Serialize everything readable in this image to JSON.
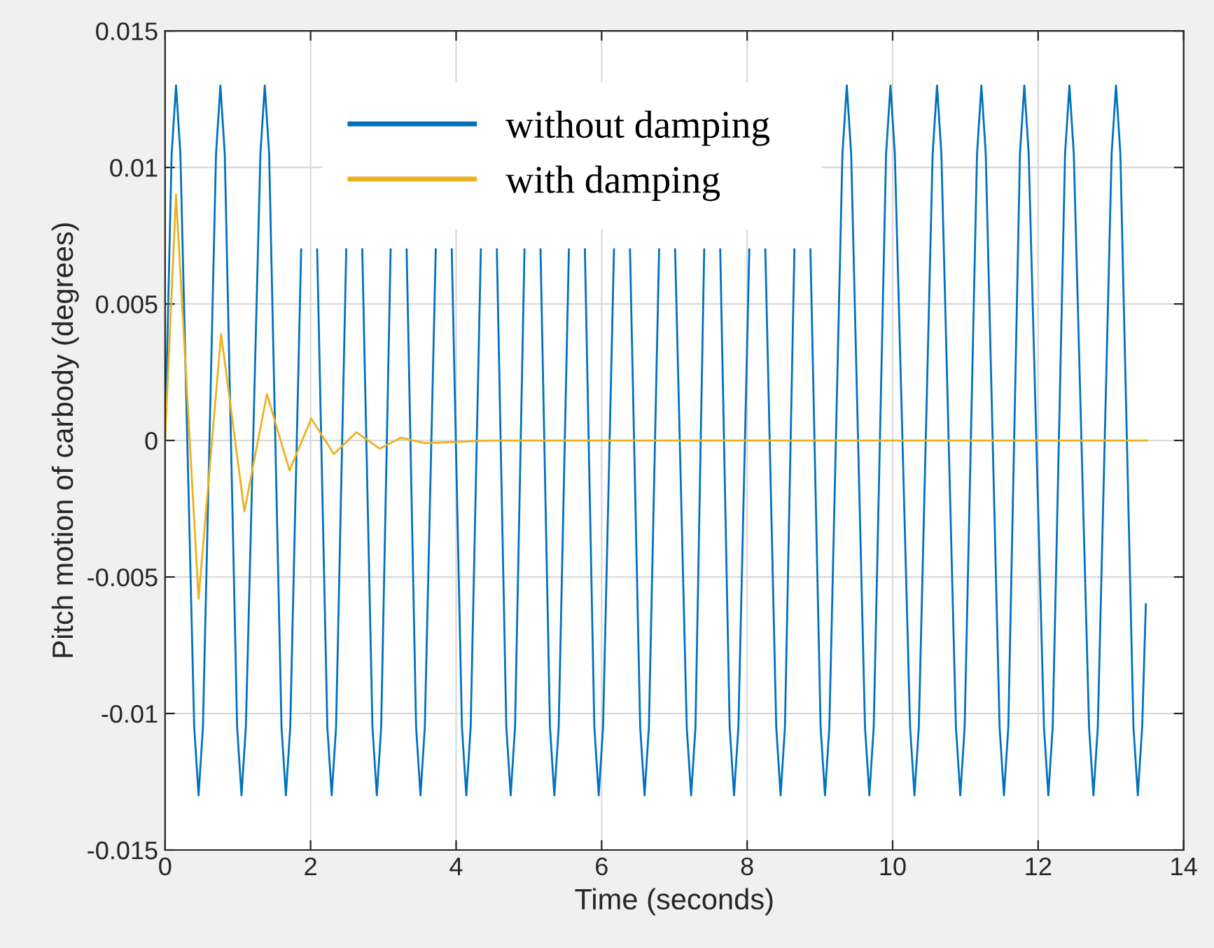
{
  "chart_data": {
    "type": "line",
    "xlabel": "Time (seconds)",
    "ylabel": "Pitch motion of carbody (degrees)",
    "xlim": [
      0,
      14
    ],
    "xticks": [
      0,
      2,
      4,
      6,
      8,
      10,
      12,
      14
    ],
    "ylim": [
      -0.015,
      0.015
    ],
    "yticks": [
      {
        "value": -0.015,
        "label": "-0.015"
      },
      {
        "value": -0.01,
        "label": "-0.01"
      },
      {
        "value": -0.005,
        "label": "-0.005"
      },
      {
        "value": 0,
        "label": "0"
      },
      {
        "value": 0.005,
        "label": "0.005"
      },
      {
        "value": 0.01,
        "label": "0.01"
      },
      {
        "value": 0.015,
        "label": "0.015"
      }
    ],
    "grid": true,
    "legend": "top",
    "line_style": "solid",
    "marker": "none",
    "series": [
      {
        "name": "without damping",
        "color": "#0072bd",
        "x": [
          0,
          0.09,
          0.15,
          0.21,
          0.4,
          0.46,
          0.52,
          0.7,
          0.76,
          0.82,
          0.99,
          1.05,
          1.11,
          1.31,
          1.37,
          1.43,
          1.6,
          1.66,
          1.72,
          1.87,
          1.98,
          2.09,
          2.23,
          2.29,
          2.35,
          2.49,
          2.6,
          2.71,
          2.85,
          2.91,
          2.97,
          3.1,
          3.21,
          3.32,
          3.45,
          3.51,
          3.57,
          3.72,
          3.83,
          3.94,
          4.08,
          4.14,
          4.2,
          4.34,
          4.45,
          4.56,
          4.69,
          4.75,
          4.81,
          4.94,
          5.05,
          5.16,
          5.29,
          5.35,
          5.41,
          5.55,
          5.66,
          5.77,
          5.9,
          5.96,
          6.02,
          6.17,
          6.28,
          6.39,
          6.53,
          6.59,
          6.65,
          6.79,
          6.9,
          7.01,
          7.17,
          7.23,
          7.29,
          7.41,
          7.52,
          7.63,
          7.76,
          7.82,
          7.88,
          8.03,
          8.14,
          8.25,
          8.4,
          8.46,
          8.52,
          8.65,
          8.76,
          8.87,
          9.01,
          9.07,
          9.13,
          9.31,
          9.37,
          9.43,
          9.62,
          9.68,
          9.74,
          9.91,
          9.97,
          10.03,
          10.24,
          10.3,
          10.36,
          10.55,
          10.61,
          10.67,
          10.87,
          10.93,
          10.99,
          11.16,
          11.22,
          11.28,
          11.47,
          11.53,
          11.59,
          11.75,
          11.81,
          11.87,
          12.08,
          12.14,
          12.2,
          12.37,
          12.43,
          12.49,
          12.7,
          12.76,
          12.82,
          13.01,
          13.07,
          13.13,
          13.31,
          13.37,
          13.43,
          13.48
        ],
        "values": [
          0,
          0.0105,
          0.013,
          0.0105,
          -0.0105,
          -0.013,
          -0.0105,
          0.0105,
          0.013,
          0.0105,
          -0.0105,
          -0.013,
          -0.0105,
          0.0105,
          0.013,
          0.0105,
          -0.0105,
          -0.013,
          -0.0105,
          0.007,
          null,
          0.007,
          -0.0105,
          -0.013,
          -0.0105,
          0.007,
          null,
          0.007,
          -0.0105,
          -0.013,
          -0.0105,
          0.007,
          null,
          0.007,
          -0.0105,
          -0.013,
          -0.0105,
          0.007,
          null,
          0.007,
          -0.0105,
          -0.013,
          -0.0105,
          0.007,
          null,
          0.007,
          -0.0105,
          -0.013,
          -0.0105,
          0.007,
          null,
          0.007,
          -0.0105,
          -0.013,
          -0.0105,
          0.007,
          null,
          0.007,
          -0.0105,
          -0.013,
          -0.0105,
          0.007,
          null,
          0.007,
          -0.0105,
          -0.013,
          -0.0105,
          0.007,
          null,
          0.007,
          -0.0105,
          -0.013,
          -0.0105,
          0.007,
          null,
          0.007,
          -0.0105,
          -0.013,
          -0.0105,
          0.007,
          null,
          0.007,
          -0.0105,
          -0.013,
          -0.0105,
          0.007,
          null,
          0.007,
          -0.0105,
          -0.013,
          -0.0105,
          0.0105,
          0.013,
          0.0105,
          -0.0105,
          -0.013,
          -0.0105,
          0.0105,
          0.013,
          0.0105,
          -0.0105,
          -0.013,
          -0.0105,
          0.0105,
          0.013,
          0.0105,
          -0.0105,
          -0.013,
          -0.0105,
          0.0105,
          0.013,
          0.0105,
          -0.0105,
          -0.013,
          -0.0105,
          0.0105,
          0.013,
          0.0105,
          -0.0105,
          -0.013,
          -0.0105,
          0.0105,
          0.013,
          0.0105,
          -0.0105,
          -0.013,
          -0.0105,
          0.0105,
          0.013,
          0.0105,
          -0.0105,
          -0.013,
          -0.0105,
          -0.006
        ]
      },
      {
        "name": "with damping",
        "color": "#edb120",
        "x": [
          0,
          0.15,
          0.46,
          0.77,
          1.09,
          1.4,
          1.71,
          2.01,
          2.32,
          2.63,
          2.95,
          3.24,
          3.57,
          4.5,
          13.5
        ],
        "values": [
          0,
          0.009,
          -0.0058,
          0.0039,
          -0.0026,
          0.0017,
          -0.0011,
          0.0008,
          -0.0005,
          0.0003,
          -0.0003,
          0.0001,
          -0.0001,
          0,
          0
        ]
      }
    ]
  }
}
